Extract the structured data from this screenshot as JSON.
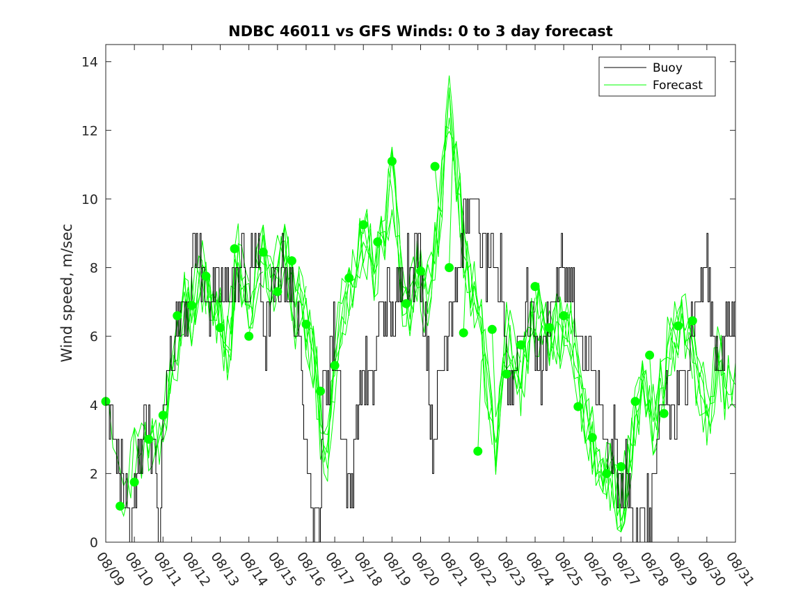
{
  "chart_data": {
    "type": "line",
    "title": "NDBC 46011 vs GFS Winds: 0 to 3 day forecast",
    "xlabel": "",
    "ylabel": "Wind speed, m/sec",
    "xlim": [
      0,
      22
    ],
    "ylim": [
      0,
      14.5
    ],
    "x_tick_labels": [
      "08/09",
      "08/10",
      "08/11",
      "08/12",
      "08/13",
      "08/14",
      "08/15",
      "08/16",
      "08/17",
      "08/18",
      "08/19",
      "08/20",
      "08/21",
      "08/22",
      "08/23",
      "08/24",
      "08/25",
      "08/26",
      "08/27",
      "08/28",
      "08/29",
      "08/30",
      "08/31"
    ],
    "y_ticks": [
      0,
      2,
      4,
      6,
      8,
      10,
      12,
      14
    ],
    "legend": {
      "location": "top-right",
      "entries": [
        {
          "name": "Buoy",
          "color": "#000000"
        },
        {
          "name": "Forecast",
          "color": "#00ff00"
        }
      ]
    },
    "buoy_key": [
      [
        0.0,
        4.0
      ],
      [
        0.3,
        3.0
      ],
      [
        0.5,
        2.0
      ],
      [
        0.7,
        1.0
      ],
      [
        0.85,
        0.0
      ],
      [
        1.0,
        1.0
      ],
      [
        1.2,
        3.0
      ],
      [
        1.4,
        4.0
      ],
      [
        1.6,
        3.0
      ],
      [
        1.8,
        1.0
      ],
      [
        1.9,
        0.0
      ],
      [
        2.0,
        4.0
      ],
      [
        2.2,
        5.0
      ],
      [
        2.4,
        6.0
      ],
      [
        2.6,
        6.5
      ],
      [
        2.8,
        7.0
      ],
      [
        3.0,
        8.0
      ],
      [
        3.2,
        8.5
      ],
      [
        3.4,
        7.5
      ],
      [
        3.6,
        7.0
      ],
      [
        3.8,
        7.0
      ],
      [
        4.0,
        7.5
      ],
      [
        4.2,
        7.0
      ],
      [
        4.4,
        8.0
      ],
      [
        4.6,
        7.5
      ],
      [
        4.8,
        8.5
      ],
      [
        5.0,
        7.0
      ],
      [
        5.2,
        9.0
      ],
      [
        5.4,
        7.0
      ],
      [
        5.6,
        6.0
      ],
      [
        5.8,
        7.0
      ],
      [
        6.0,
        7.5
      ],
      [
        6.2,
        8.5
      ],
      [
        6.4,
        7.5
      ],
      [
        6.6,
        6.5
      ],
      [
        6.8,
        5.0
      ],
      [
        7.0,
        3.5
      ],
      [
        7.2,
        1.0
      ],
      [
        7.4,
        0.0
      ],
      [
        7.6,
        4.0
      ],
      [
        7.9,
        6.0
      ],
      [
        8.1,
        5.0
      ],
      [
        8.3,
        3.0
      ],
      [
        8.5,
        1.0
      ],
      [
        8.7,
        3.0
      ],
      [
        9.0,
        5.0
      ],
      [
        9.3,
        4.0
      ],
      [
        9.5,
        6.0
      ],
      [
        9.8,
        7.0
      ],
      [
        10.1,
        6.5
      ],
      [
        10.4,
        7.5
      ],
      [
        10.7,
        8.5
      ],
      [
        11.0,
        8.0
      ],
      [
        11.2,
        6.0
      ],
      [
        11.4,
        3.0
      ],
      [
        11.6,
        4.0
      ],
      [
        11.8,
        5.5
      ],
      [
        12.0,
        7.0
      ],
      [
        12.2,
        7.5
      ],
      [
        12.4,
        8.5
      ],
      [
        12.6,
        9.5
      ],
      [
        12.8,
        10.5
      ],
      [
        13.0,
        9.0
      ],
      [
        13.2,
        8.5
      ],
      [
        13.4,
        8.0
      ],
      [
        13.6,
        7.5
      ],
      [
        13.8,
        8.0
      ],
      [
        14.0,
        5.0
      ],
      [
        14.2,
        4.0
      ],
      [
        14.4,
        6.0
      ],
      [
        14.6,
        6.5
      ],
      [
        14.8,
        7.0
      ],
      [
        15.0,
        6.0
      ],
      [
        15.2,
        5.0
      ],
      [
        15.4,
        6.5
      ],
      [
        15.6,
        7.0
      ],
      [
        15.8,
        7.5
      ],
      [
        16.0,
        8.0
      ],
      [
        16.2,
        7.5
      ],
      [
        16.4,
        6.5
      ],
      [
        16.6,
        5.0
      ],
      [
        16.8,
        5.5
      ],
      [
        17.0,
        5.0
      ],
      [
        17.2,
        4.0
      ],
      [
        17.4,
        3.0
      ],
      [
        17.6,
        2.0
      ],
      [
        17.8,
        3.0
      ],
      [
        18.0,
        1.0
      ],
      [
        18.2,
        2.0
      ],
      [
        18.4,
        1.0
      ],
      [
        18.6,
        0.5
      ],
      [
        18.8,
        0.0
      ],
      [
        19.0,
        1.0
      ],
      [
        19.2,
        2.0
      ],
      [
        19.4,
        3.5
      ],
      [
        19.6,
        4.5
      ],
      [
        19.8,
        3.5
      ],
      [
        20.0,
        4.0
      ],
      [
        20.2,
        5.0
      ],
      [
        20.4,
        6.0
      ],
      [
        20.6,
        6.5
      ],
      [
        20.8,
        7.5
      ],
      [
        21.0,
        8.0
      ],
      [
        21.2,
        6.5
      ],
      [
        21.4,
        5.0
      ],
      [
        21.6,
        6.0
      ],
      [
        21.8,
        6.5
      ],
      [
        22.0,
        6.0
      ]
    ],
    "forecast_key": [
      [
        0.0,
        4.1
      ],
      [
        0.3,
        3.0
      ],
      [
        0.5,
        1.0
      ],
      [
        0.75,
        1.5
      ],
      [
        1.0,
        2.5
      ],
      [
        1.3,
        2.8
      ],
      [
        1.5,
        2.8
      ],
      [
        1.8,
        3.2
      ],
      [
        2.0,
        3.5
      ],
      [
        2.2,
        4.2
      ],
      [
        2.4,
        5.0
      ],
      [
        2.6,
        6.5
      ],
      [
        2.8,
        7.0
      ],
      [
        3.0,
        6.8
      ],
      [
        3.2,
        7.5
      ],
      [
        3.4,
        7.8
      ],
      [
        3.6,
        7.2
      ],
      [
        3.8,
        6.3
      ],
      [
        4.0,
        6.5
      ],
      [
        4.2,
        5.5
      ],
      [
        4.4,
        6.5
      ],
      [
        4.6,
        8.3
      ],
      [
        4.8,
        7.8
      ],
      [
        5.0,
        6.5
      ],
      [
        5.2,
        7.5
      ],
      [
        5.4,
        8.5
      ],
      [
        5.6,
        8.0
      ],
      [
        5.8,
        7.0
      ],
      [
        6.0,
        8.0
      ],
      [
        6.2,
        8.5
      ],
      [
        6.4,
        8.0
      ],
      [
        6.6,
        6.5
      ],
      [
        6.8,
        7.5
      ],
      [
        7.0,
        6.5
      ],
      [
        7.2,
        5.5
      ],
      [
        7.4,
        4.5
      ],
      [
        7.6,
        2.0
      ],
      [
        7.8,
        3.0
      ],
      [
        8.0,
        5.0
      ],
      [
        8.2,
        6.5
      ],
      [
        8.4,
        7.0
      ],
      [
        8.6,
        7.8
      ],
      [
        8.8,
        8.5
      ],
      [
        9.0,
        9.0
      ],
      [
        9.2,
        8.5
      ],
      [
        9.4,
        8.0
      ],
      [
        9.6,
        8.5
      ],
      [
        9.8,
        9.5
      ],
      [
        10.0,
        10.5
      ],
      [
        10.2,
        9.0
      ],
      [
        10.4,
        7.0
      ],
      [
        10.6,
        6.8
      ],
      [
        10.8,
        8.0
      ],
      [
        11.0,
        7.5
      ],
      [
        11.2,
        7.0
      ],
      [
        11.4,
        8.0
      ],
      [
        11.6,
        9.0
      ],
      [
        11.8,
        11.0
      ],
      [
        12.0,
        12.5
      ],
      [
        12.2,
        11.5
      ],
      [
        12.4,
        9.5
      ],
      [
        12.6,
        8.0
      ],
      [
        12.8,
        7.5
      ],
      [
        13.0,
        7.0
      ],
      [
        13.2,
        5.5
      ],
      [
        13.4,
        4.0
      ],
      [
        13.6,
        2.5
      ],
      [
        13.8,
        4.0
      ],
      [
        14.0,
        6.0
      ],
      [
        14.2,
        5.5
      ],
      [
        14.4,
        4.5
      ],
      [
        14.6,
        5.0
      ],
      [
        14.8,
        6.0
      ],
      [
        15.0,
        6.5
      ],
      [
        15.2,
        6.5
      ],
      [
        15.4,
        6.0
      ],
      [
        15.6,
        6.3
      ],
      [
        15.8,
        6.2
      ],
      [
        16.0,
        6.0
      ],
      [
        16.2,
        6.5
      ],
      [
        16.4,
        5.5
      ],
      [
        16.6,
        4.0
      ],
      [
        16.8,
        3.5
      ],
      [
        17.0,
        3.0
      ],
      [
        17.2,
        2.5
      ],
      [
        17.4,
        2.5
      ],
      [
        17.6,
        2.0
      ],
      [
        17.8,
        1.5
      ],
      [
        18.0,
        1.0
      ],
      [
        18.2,
        2.0
      ],
      [
        18.4,
        3.0
      ],
      [
        18.6,
        4.0
      ],
      [
        18.8,
        4.5
      ],
      [
        19.0,
        3.8
      ],
      [
        19.2,
        3.5
      ],
      [
        19.4,
        4.5
      ],
      [
        19.6,
        5.5
      ],
      [
        19.8,
        6.0
      ],
      [
        20.0,
        5.8
      ],
      [
        20.2,
        6.3
      ],
      [
        20.4,
        6.0
      ],
      [
        20.6,
        5.0
      ],
      [
        20.8,
        4.5
      ],
      [
        21.0,
        3.8
      ],
      [
        21.2,
        4.5
      ],
      [
        21.4,
        5.5
      ],
      [
        21.6,
        4.5
      ],
      [
        21.8,
        5.0
      ],
      [
        22.0,
        4.2
      ]
    ],
    "forecast_markers": [
      [
        0.0,
        4.1
      ],
      [
        0.5,
        1.05
      ],
      [
        1.0,
        1.75
      ],
      [
        1.5,
        3.0
      ],
      [
        2.0,
        3.7
      ],
      [
        2.5,
        6.6
      ],
      [
        3.0,
        6.9
      ],
      [
        3.5,
        7.75
      ],
      [
        4.0,
        6.25
      ],
      [
        4.5,
        8.55
      ],
      [
        5.0,
        6.0
      ],
      [
        5.5,
        8.45
      ],
      [
        6.0,
        7.3
      ],
      [
        6.5,
        8.2
      ],
      [
        7.0,
        6.35
      ],
      [
        7.5,
        4.4
      ],
      [
        8.0,
        5.15
      ],
      [
        8.5,
        7.7
      ],
      [
        9.0,
        9.25
      ],
      [
        9.5,
        8.75
      ],
      [
        10.0,
        11.1
      ],
      [
        10.5,
        6.95
      ],
      [
        11.0,
        7.9
      ],
      [
        11.5,
        10.95
      ],
      [
        12.0,
        8.0
      ],
      [
        12.5,
        6.1
      ],
      [
        13.0,
        2.65
      ],
      [
        13.5,
        6.2
      ],
      [
        14.0,
        4.9
      ],
      [
        14.5,
        5.75
      ],
      [
        15.0,
        7.45
      ],
      [
        15.5,
        6.25
      ],
      [
        16.0,
        6.6
      ],
      [
        16.5,
        3.95
      ],
      [
        17.0,
        3.05
      ],
      [
        17.5,
        2.0
      ],
      [
        18.0,
        2.2
      ],
      [
        18.5,
        4.1
      ],
      [
        19.0,
        5.45
      ],
      [
        19.5,
        3.75
      ],
      [
        20.0,
        6.3
      ],
      [
        20.5,
        6.45
      ]
    ]
  }
}
